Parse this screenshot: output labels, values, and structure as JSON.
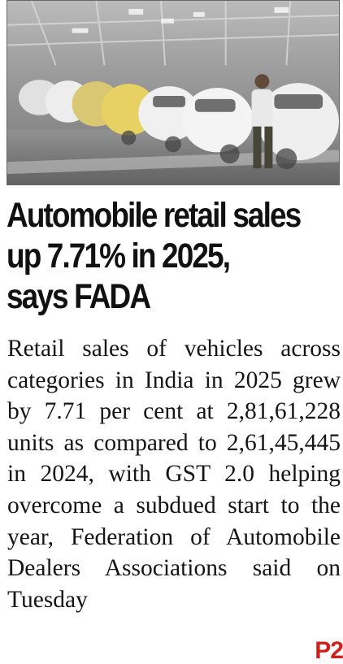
{
  "article": {
    "headline_lines": [
      "Automobile retail sales",
      "up 7.71% in 2025,",
      "says FADA"
    ],
    "body": "Retail sales of vehicles across categories in India in 2025 grew by 7.71 per cent at 2,81,61,228 units as compared to 2,61,45,445 in 2024, with GST 2.0 helping overcome a subdued start to the year, Federation of Auto­mobile Dealers Associations said on Tuesday",
    "page_ref": "P2"
  },
  "photo": {
    "icon": "car-assembly-line-photo"
  }
}
